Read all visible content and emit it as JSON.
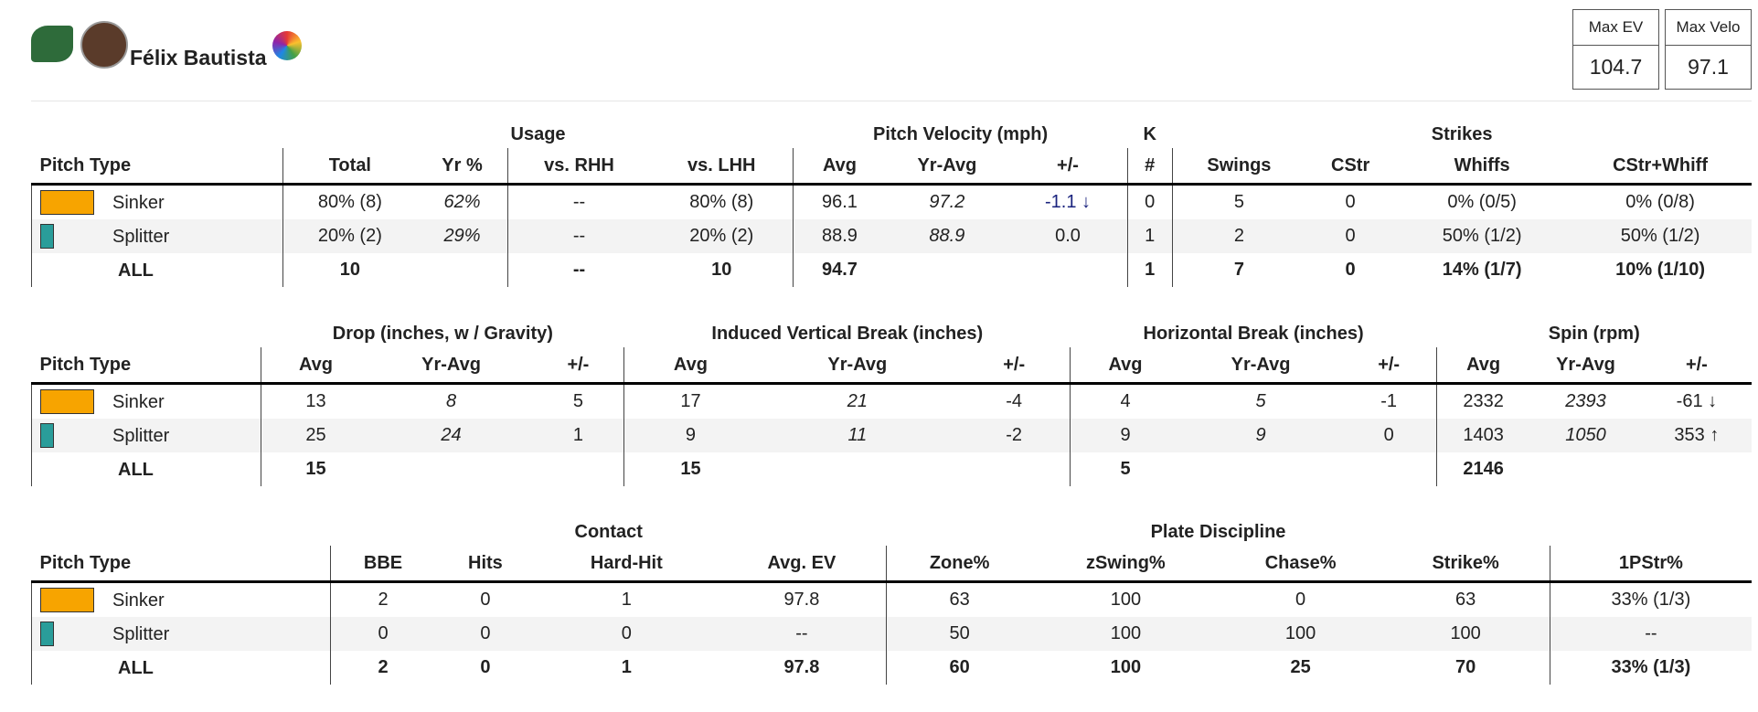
{
  "header": {
    "player": "Félix Bautista",
    "stats": [
      {
        "label": "Max EV",
        "value": "104.7"
      },
      {
        "label": "Max Velo",
        "value": "97.1"
      }
    ]
  },
  "tables": [
    {
      "groups": [
        {
          "label": null,
          "span": 1
        },
        {
          "label": "Usage",
          "span": 4
        },
        {
          "label": "Pitch Velocity (mph)",
          "span": 3
        },
        {
          "label": "K",
          "span": 1
        },
        {
          "label": "Strikes",
          "span": 4
        }
      ],
      "columns": [
        "Pitch Type",
        "Total",
        "Yr %",
        "vs. RHH",
        "vs. LHH",
        "Avg",
        "Yr-Avg",
        "+/-",
        "#",
        "Swings",
        "CStr",
        "Whiffs",
        "CStr+Whiff"
      ],
      "rows": [
        {
          "color": "#f7a400",
          "cells": [
            "Sinker",
            "80% (8)",
            "62%",
            "--",
            "80% (8)",
            "96.1",
            "97.2",
            "-1.1 ↓",
            "0",
            "5",
            "0",
            "0% (0/5)",
            "0% (0/8)"
          ]
        },
        {
          "color": "#2a9d9a",
          "cells": [
            "Splitter",
            "20% (2)",
            "29%",
            "--",
            "20% (2)",
            "88.9",
            "88.9",
            "0.0",
            "1",
            "2",
            "0",
            "50% (1/2)",
            "50% (1/2)"
          ]
        },
        {
          "color": null,
          "cells": [
            "ALL",
            "10",
            null,
            "--",
            "10",
            "94.7",
            null,
            null,
            "1",
            "7",
            "0",
            "14% (1/7)",
            "10% (1/10)"
          ]
        }
      ]
    },
    {
      "groups": [
        {
          "label": null,
          "span": 1
        },
        {
          "label": "Drop (inches, w / Gravity)",
          "span": 3
        },
        {
          "label": "Induced Vertical Break (inches)",
          "span": 3
        },
        {
          "label": "Horizontal Break (inches)",
          "span": 3
        },
        {
          "label": "Spin (rpm)",
          "span": 3
        }
      ],
      "columns": [
        "Pitch Type",
        "Avg",
        "Yr-Avg",
        "+/-",
        "Avg",
        "Yr-Avg",
        "+/-",
        "Avg",
        "Yr-Avg",
        "+/-",
        "Avg",
        "Yr-Avg",
        "+/-"
      ],
      "rows": [
        {
          "color": "#f7a400",
          "cells": [
            "Sinker",
            "13",
            "8",
            "5",
            "17",
            "21",
            "-4",
            "4",
            "5",
            "-1",
            "2332",
            "2393",
            "-61 ↓"
          ]
        },
        {
          "color": "#2a9d9a",
          "cells": [
            "Splitter",
            "25",
            "24",
            "1",
            "9",
            "11",
            "-2",
            "9",
            "9",
            "0",
            "1403",
            "1050",
            "353 ↑"
          ]
        },
        {
          "color": null,
          "cells": [
            "ALL",
            "15",
            null,
            null,
            "15",
            null,
            null,
            "5",
            null,
            null,
            "2146",
            null,
            null
          ]
        }
      ]
    },
    {
      "groups": [
        {
          "label": null,
          "span": 1
        },
        {
          "label": "Contact",
          "span": 4
        },
        {
          "label": "Plate Discipline",
          "span": 4
        },
        {
          "label": null,
          "span": 1
        }
      ],
      "columns": [
        "Pitch Type",
        "BBE",
        "Hits",
        "Hard-Hit",
        "Avg. EV",
        "Zone%",
        "zSwing%",
        "Chase%",
        "Strike%",
        "1PStr%"
      ],
      "rows": [
        {
          "color": "#f7a400",
          "cells": [
            "Sinker",
            "2",
            "0",
            "1",
            "97.8",
            "63",
            "100",
            "0",
            "63",
            "33% (1/3)"
          ]
        },
        {
          "color": "#2a9d9a",
          "cells": [
            "Splitter",
            "0",
            "0",
            "0",
            "--",
            "50",
            "100",
            "100",
            "100",
            "--"
          ]
        },
        {
          "color": null,
          "cells": [
            "ALL",
            "2",
            "0",
            "1",
            "97.8",
            "60",
            "100",
            "25",
            "70",
            "33% (1/3)"
          ]
        }
      ]
    }
  ]
}
